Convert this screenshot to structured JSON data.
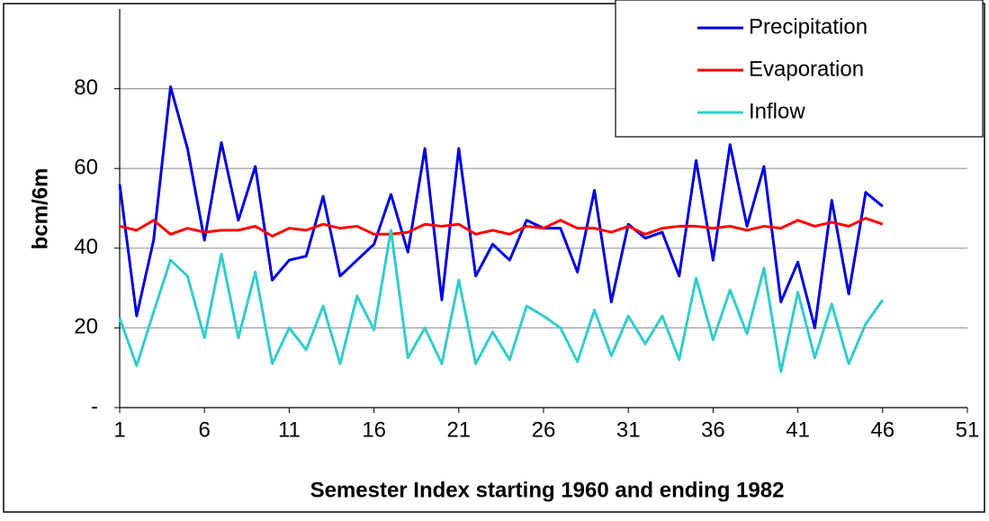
{
  "chart_data": {
    "type": "line",
    "xlabel": "Semester Index starting 1960 and ending 1982",
    "ylabel": "bcm/6m",
    "x": [
      1,
      2,
      3,
      4,
      5,
      6,
      7,
      8,
      9,
      10,
      11,
      12,
      13,
      14,
      15,
      16,
      17,
      18,
      19,
      20,
      21,
      22,
      23,
      24,
      25,
      26,
      27,
      28,
      29,
      30,
      31,
      32,
      33,
      34,
      35,
      36,
      37,
      38,
      39,
      40,
      41,
      42,
      43,
      44,
      45,
      46
    ],
    "series": [
      {
        "name": "Precipitation",
        "color": "#0000e0",
        "values": [
          56,
          23,
          42,
          80.5,
          65,
          42,
          66.5,
          47,
          60.5,
          32,
          37,
          38,
          53,
          33,
          37,
          41,
          53.5,
          39,
          65,
          27,
          65,
          33,
          41,
          37,
          47,
          45,
          45,
          34,
          54.5,
          26.5,
          46,
          42.5,
          44,
          33,
          62,
          37,
          66,
          45.5,
          60.5,
          26.5,
          36.5,
          20,
          52,
          28.5,
          54,
          50.5
        ]
      },
      {
        "name": "Evaporation",
        "color": "#ff0000",
        "values": [
          45.5,
          44.5,
          47,
          43.5,
          45,
          44,
          44.5,
          44.5,
          45.5,
          43,
          45,
          44.5,
          46,
          45,
          45.5,
          43.5,
          43.5,
          44,
          46,
          45.5,
          46,
          43.5,
          44.5,
          43.5,
          45.5,
          45,
          47,
          45,
          45,
          44,
          45.5,
          43.5,
          45,
          45.5,
          45.5,
          45,
          45.5,
          44.5,
          45.5,
          45,
          47,
          45.5,
          46.5,
          45.5,
          47.5,
          46
        ]
      },
      {
        "name": "Inflow",
        "color": "#33cccc",
        "values": [
          22.5,
          10.5,
          24,
          37,
          33,
          17.5,
          38.5,
          17.5,
          34,
          11,
          20,
          14.5,
          25.5,
          11,
          28,
          19.5,
          44.5,
          12.5,
          20,
          11,
          32,
          11,
          19,
          12,
          25.5,
          23,
          20,
          11.5,
          24.5,
          13,
          23,
          16,
          23,
          12,
          32.5,
          17,
          29.5,
          18.5,
          35,
          9,
          29,
          12.5,
          26,
          11,
          21,
          27
        ]
      }
    ],
    "xlim": [
      1,
      51
    ],
    "xticks": [
      1,
      6,
      11,
      16,
      21,
      26,
      31,
      36,
      41,
      46,
      51
    ],
    "ylim": [
      0,
      100
    ],
    "yticks": [
      {
        "value": 0,
        "label": "-"
      },
      20,
      40,
      60,
      80
    ],
    "grid": true,
    "legend": "upper right"
  }
}
